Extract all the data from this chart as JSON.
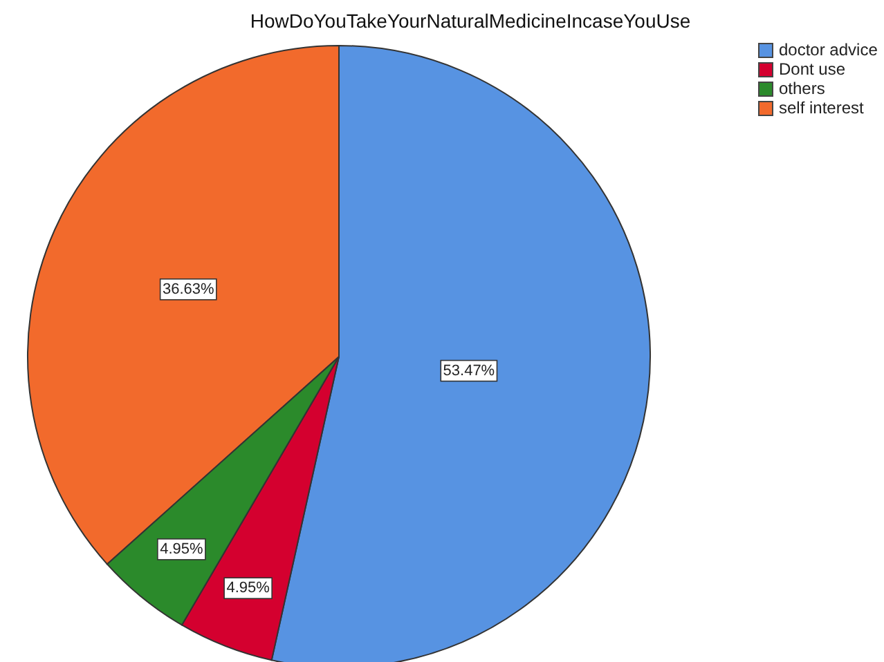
{
  "chart_data": {
    "type": "pie",
    "title": "HowDoYouTakeYourNaturalMedicineIncaseYouUse",
    "categories": [
      "doctor advice",
      "Dont use",
      "others",
      "self interest"
    ],
    "values": [
      53.47,
      4.95,
      4.95,
      36.63
    ],
    "colors": [
      "#5793e2",
      "#d4002f",
      "#2b8a2b",
      "#f26a2c"
    ],
    "value_labels": [
      "53.47%",
      "4.95%",
      "4.95%",
      "36.63%"
    ],
    "legend": "top right"
  }
}
